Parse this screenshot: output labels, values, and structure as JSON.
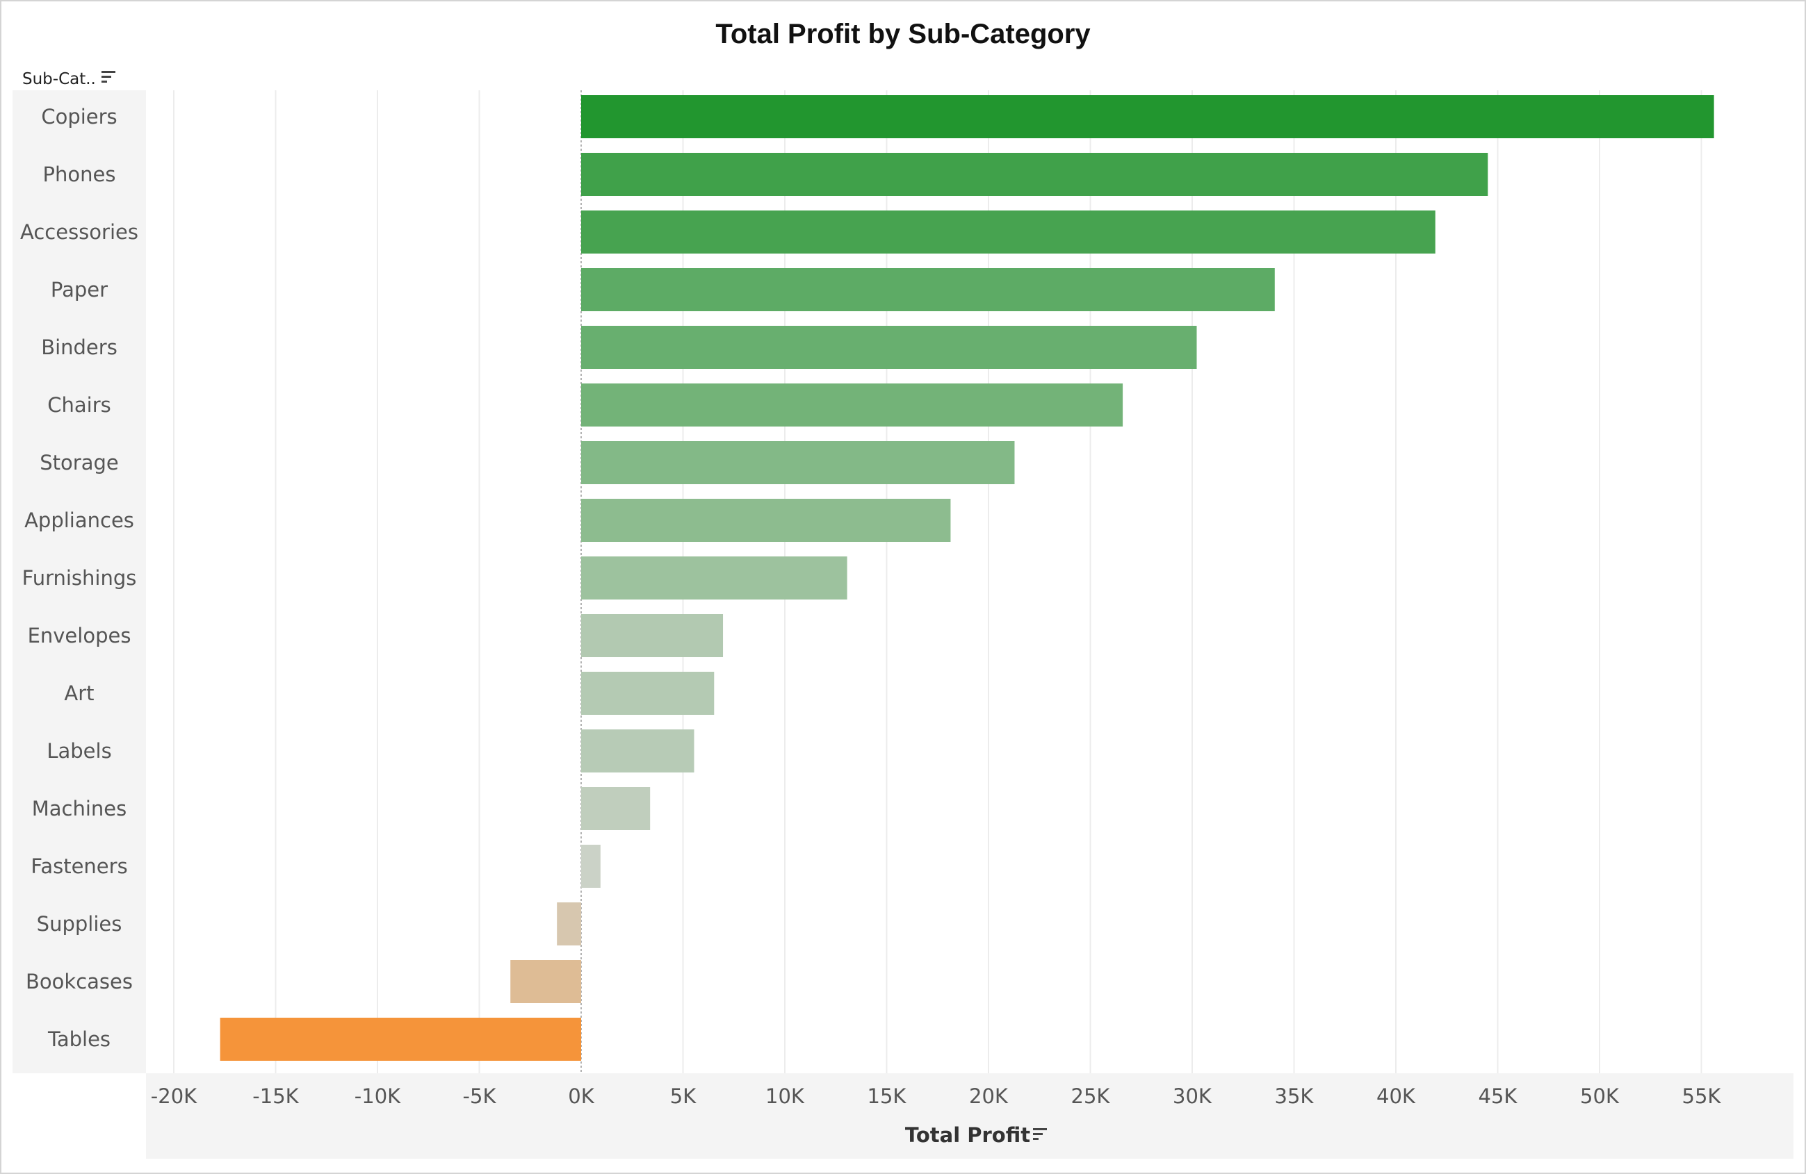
{
  "chart_data": {
    "type": "bar",
    "orientation": "horizontal",
    "title": "Total Profit by Sub-Category",
    "ylabel": "Sub-Cat..",
    "xlabel": "Total Profit",
    "categories": [
      "Copiers",
      "Phones",
      "Accessories",
      "Paper",
      "Binders",
      "Chairs",
      "Storage",
      "Appliances",
      "Furnishings",
      "Envelopes",
      "Art",
      "Labels",
      "Machines",
      "Fasteners",
      "Supplies",
      "Bookcases",
      "Tables"
    ],
    "values": [
      55618,
      44516,
      41937,
      34054,
      30222,
      26590,
      21279,
      18138,
      13059,
      6964,
      6528,
      5546,
      3385,
      950,
      -1189,
      -3473,
      -17725
    ],
    "xlim": [
      -20000,
      55000
    ],
    "xticks": [
      -20000,
      -15000,
      -10000,
      -5000,
      0,
      5000,
      10000,
      15000,
      20000,
      25000,
      30000,
      35000,
      40000,
      45000,
      50000,
      55000
    ],
    "xtick_labels": [
      "-20K",
      "-15K",
      "-10K",
      "-5K",
      "0K",
      "5K",
      "10K",
      "15K",
      "20K",
      "25K",
      "30K",
      "35K",
      "40K",
      "45K",
      "50K",
      "55K"
    ],
    "grid": true,
    "color_scale": {
      "negative": "#f5943a",
      "neutral": "#d0d4cc",
      "positive": "#22962f"
    },
    "sort_icon": "sort-descending-icon"
  }
}
